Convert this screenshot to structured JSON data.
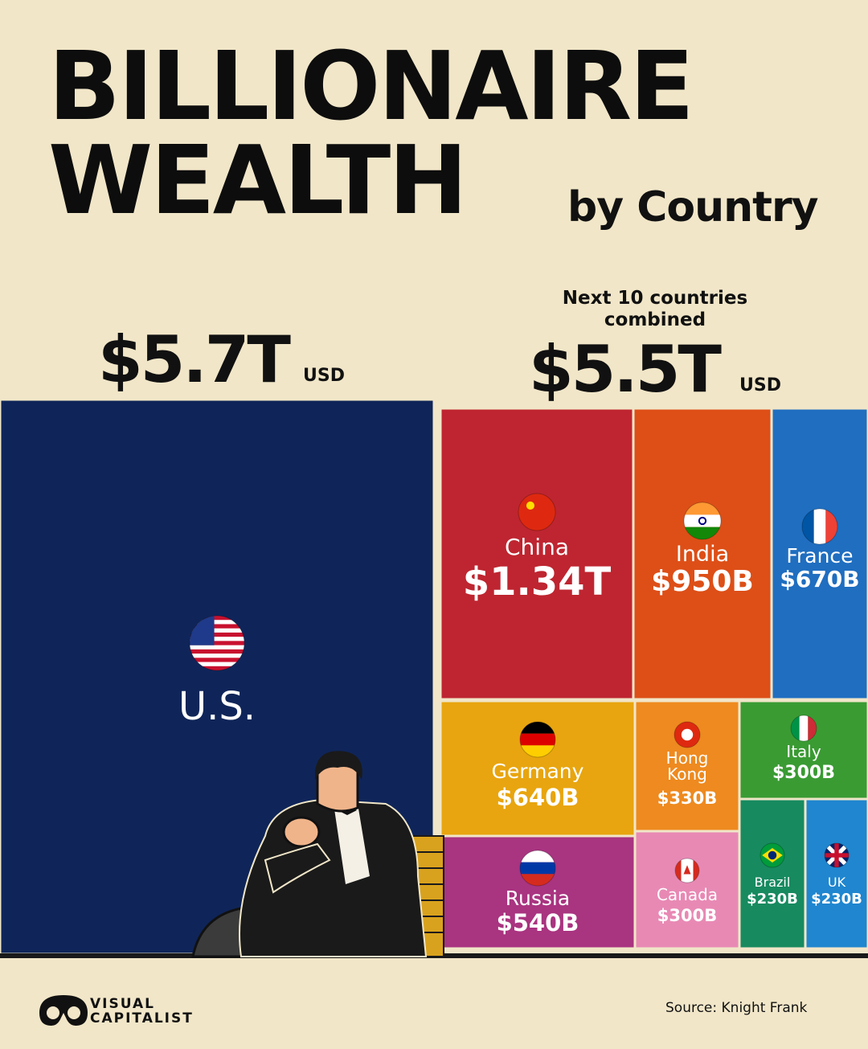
{
  "title": {
    "line1": "BILLIONAIRE",
    "line2": "WEALTH",
    "subtitle": "by Country"
  },
  "totals": {
    "us_value": "$5.7T",
    "us_unit": "USD",
    "next_label": "Next 10 countries combined",
    "next_value": "$5.5T",
    "next_unit": "USD"
  },
  "chart_data": {
    "type": "treemap",
    "unit": "USD",
    "items": [
      {
        "name": "U.S.",
        "value_label": "",
        "value": 5700,
        "color": "#0f2559",
        "flag": "us-flag"
      },
      {
        "name": "China",
        "value_label": "$1.34T",
        "value": 1340,
        "color": "#be2530",
        "flag": "china-flag"
      },
      {
        "name": "India",
        "value_label": "$950B",
        "value": 950,
        "color": "#dd4f17",
        "flag": "india-flag"
      },
      {
        "name": "France",
        "value_label": "$670B",
        "value": 670,
        "color": "#1f6ec0",
        "flag": "france-flag"
      },
      {
        "name": "Germany",
        "value_label": "$640B",
        "value": 640,
        "color": "#e8a50f",
        "flag": "germany-flag"
      },
      {
        "name": "Hong Kong",
        "value_label": "$330B",
        "value": 330,
        "color": "#ee8a1f",
        "flag": "hong-kong-flag"
      },
      {
        "name": "Italy",
        "value_label": "$300B",
        "value": 300,
        "color": "#3a9b33",
        "flag": "italy-flag"
      },
      {
        "name": "Russia",
        "value_label": "$540B",
        "value": 540,
        "color": "#a93480",
        "flag": "russia-flag"
      },
      {
        "name": "Canada",
        "value_label": "$300B",
        "value": 300,
        "color": "#e889b4",
        "flag": "canada-flag"
      },
      {
        "name": "Brazil",
        "value_label": "$230B",
        "value": 230,
        "color": "#178a60",
        "flag": "brazil-flag"
      },
      {
        "name": "UK",
        "value_label": "$230B",
        "value": 230,
        "color": "#1f86cf",
        "flag": "uk-flag"
      }
    ]
  },
  "footer": {
    "brand_line1": "VISUAL",
    "brand_line2": "CAPITALIST",
    "source": "Source: Knight Frank"
  }
}
